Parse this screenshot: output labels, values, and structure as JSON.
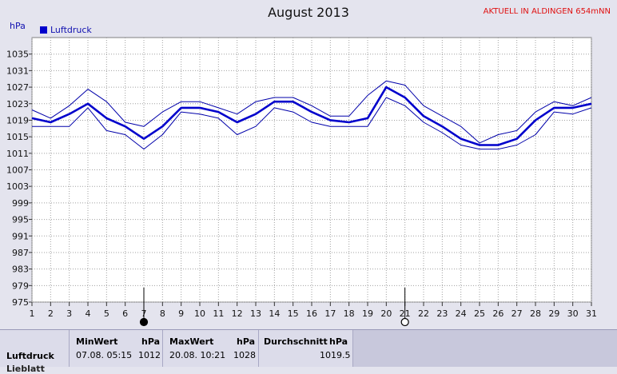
{
  "chart_data": {
    "type": "line",
    "title": "August 2013",
    "station_label": "AKTUELL IN ALDINGEN 654mNN",
    "ylabel": "hPa",
    "ylim": [
      975,
      1039
    ],
    "yticks": [
      975,
      979,
      983,
      987,
      991,
      995,
      999,
      1003,
      1007,
      1011,
      1015,
      1019,
      1023,
      1027,
      1031,
      1035
    ],
    "x": [
      1,
      2,
      3,
      4,
      5,
      6,
      7,
      8,
      9,
      10,
      11,
      12,
      13,
      14,
      15,
      16,
      17,
      18,
      19,
      20,
      21,
      22,
      23,
      24,
      25,
      26,
      27,
      28,
      29,
      30,
      31
    ],
    "grid": true,
    "legend_position": "top-left",
    "series": [
      {
        "name": "Luftdruck",
        "role": "mean",
        "values": [
          1019.5,
          1018.5,
          1020.5,
          1023,
          1019.5,
          1017.5,
          1014.5,
          1017.5,
          1022,
          1022,
          1021,
          1018.5,
          1020.5,
          1023.5,
          1023.5,
          1021,
          1019,
          1018.5,
          1019.5,
          1027,
          1024.5,
          1020,
          1017.5,
          1014.5,
          1013,
          1013,
          1014.5,
          1019,
          1022,
          1022,
          1023
        ]
      },
      {
        "role": "max",
        "values": [
          1021.5,
          1019.5,
          1022.5,
          1026.5,
          1023.5,
          1018.5,
          1017.5,
          1021,
          1023.5,
          1023.5,
          1022,
          1020.5,
          1023.5,
          1024.5,
          1024.5,
          1022.5,
          1020,
          1020,
          1025,
          1028.5,
          1027.5,
          1022.5,
          1020,
          1017.5,
          1013.5,
          1015.5,
          1016.5,
          1021,
          1023.5,
          1022.5,
          1024.5
        ]
      },
      {
        "role": "min",
        "values": [
          1017.5,
          1017.5,
          1017.5,
          1022,
          1016.5,
          1015.5,
          1012,
          1015.5,
          1021,
          1020.5,
          1019.5,
          1015.5,
          1017.5,
          1022,
          1021,
          1018.5,
          1017.5,
          1017.5,
          1017.5,
          1024.5,
          1022.5,
          1018.5,
          1016,
          1013,
          1012,
          1012,
          1013,
          1015.5,
          1021,
          1020.5,
          1022
        ]
      }
    ],
    "moon_markers": [
      {
        "day": 7,
        "phase": "new-moon"
      },
      {
        "day": 21,
        "phase": "full-moon"
      }
    ]
  },
  "stats": {
    "row_label": "Luftdruck",
    "row_label_2": "Lieblatt",
    "min_header": "MinWert",
    "min_unit": "hPa",
    "min_time": "07.08.  05:15",
    "min_value": "1012",
    "max_header": "MaxWert",
    "max_unit": "hPa",
    "max_time": "20.08.  10:21",
    "max_value": "1028",
    "avg_header": "Durchschnitt",
    "avg_unit": "hPa",
    "avg_value": "1019.5"
  },
  "colors": {
    "plot_background": "#ffffff",
    "page_background": "#e4e4ee",
    "mean_line": "#0000cc",
    "band_line": "#0000aa",
    "grid": "#a0a0a0",
    "title_red": "#e01010"
  }
}
